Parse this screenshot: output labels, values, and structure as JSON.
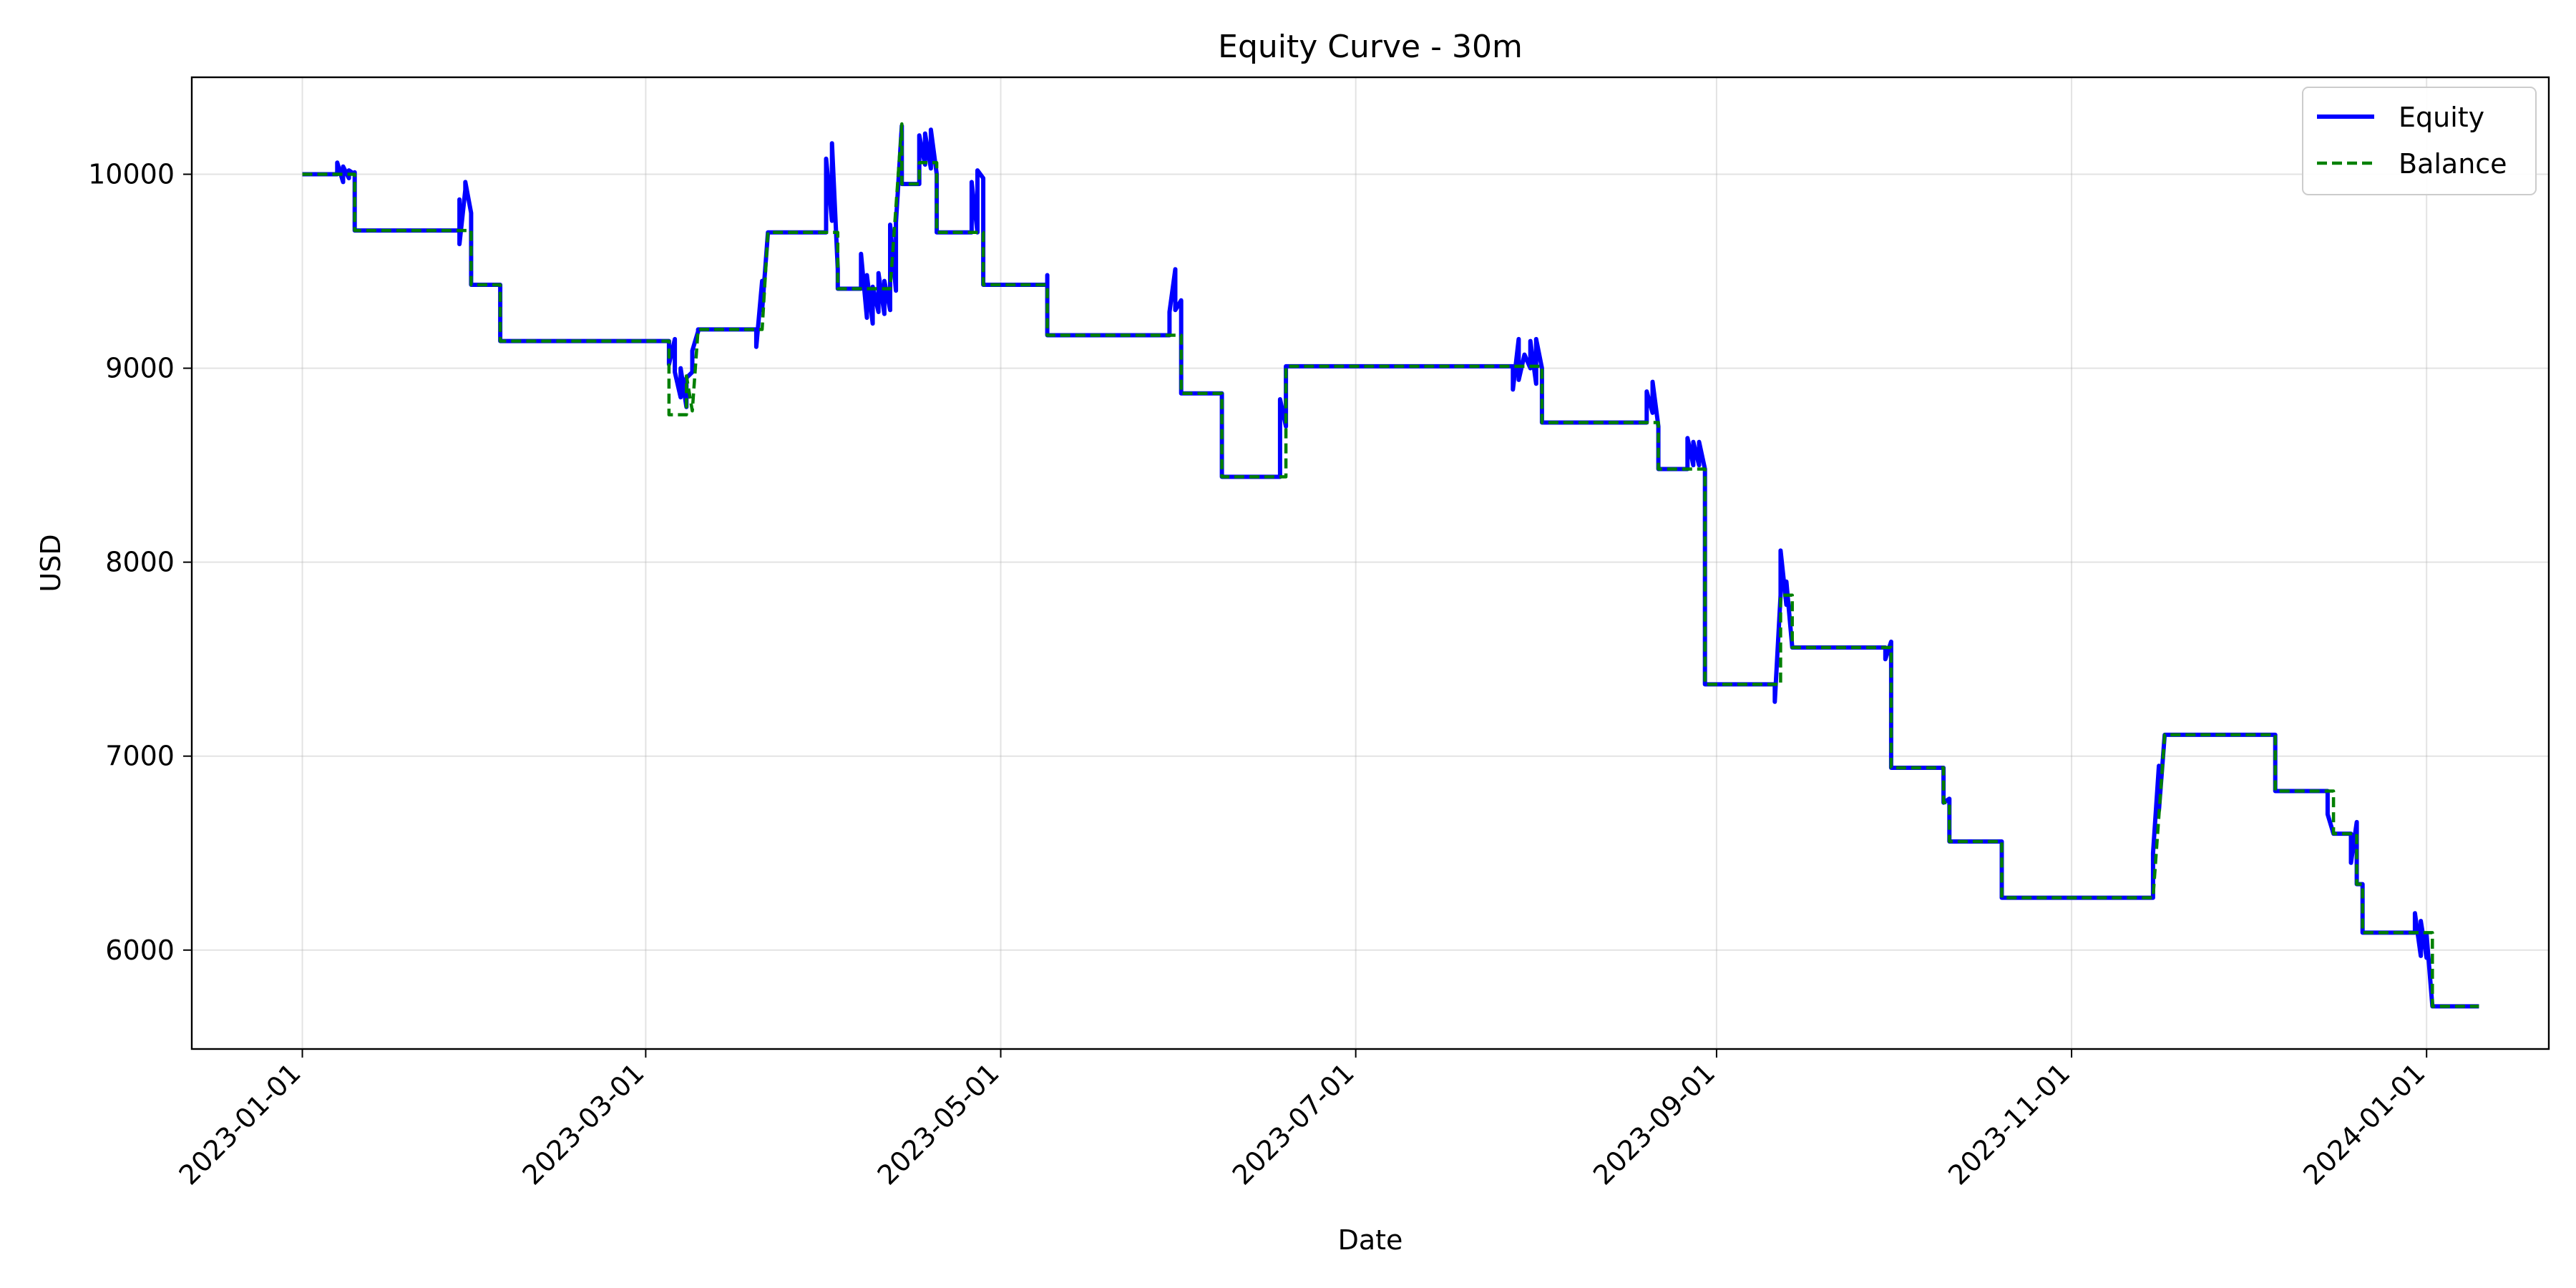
{
  "chart_data": {
    "type": "line",
    "title": "Equity Curve - 30m",
    "xlabel": "Date",
    "ylabel": "USD",
    "xlim": [
      "2022-12-13",
      "2024-01-22"
    ],
    "ylim": [
      5490,
      10500
    ],
    "x_ticks": [
      "2023-01-01",
      "2023-03-01",
      "2023-05-01",
      "2023-07-01",
      "2023-09-01",
      "2023-11-01",
      "2024-01-01"
    ],
    "y_ticks": [
      6000,
      7000,
      8000,
      9000,
      10000
    ],
    "grid": true,
    "legend_position": "top-right",
    "series": [
      {
        "name": "Equity",
        "color": "#0000ff",
        "style": "solid",
        "points": [
          [
            "2023-01-01",
            10000
          ],
          [
            "2023-01-07",
            10000
          ],
          [
            "2023-01-07",
            10060
          ],
          [
            "2023-01-08",
            9960
          ],
          [
            "2023-01-08",
            10040
          ],
          [
            "2023-01-09",
            9980
          ],
          [
            "2023-01-09",
            10020
          ],
          [
            "2023-01-10",
            10000
          ],
          [
            "2023-01-10",
            10010
          ],
          [
            "2023-01-10",
            9710
          ],
          [
            "2023-01-28",
            9710
          ],
          [
            "2023-01-28",
            9870
          ],
          [
            "2023-01-28",
            9640
          ],
          [
            "2023-01-29",
            9920
          ],
          [
            "2023-01-29",
            9960
          ],
          [
            "2023-01-30",
            9800
          ],
          [
            "2023-01-30",
            9720
          ],
          [
            "2023-01-30",
            9430
          ],
          [
            "2023-02-04",
            9430
          ],
          [
            "2023-02-04",
            9140
          ],
          [
            "2023-03-05",
            9140
          ],
          [
            "2023-03-05",
            9020
          ],
          [
            "2023-03-06",
            9150
          ],
          [
            "2023-03-06",
            8980
          ],
          [
            "2023-03-07",
            8850
          ],
          [
            "2023-03-07",
            9000
          ],
          [
            "2023-03-08",
            8800
          ],
          [
            "2023-03-08",
            8950
          ],
          [
            "2023-03-09",
            8980
          ],
          [
            "2023-03-09",
            9090
          ],
          [
            "2023-03-10",
            9190
          ],
          [
            "2023-03-10",
            9200
          ],
          [
            "2023-03-20",
            9200
          ],
          [
            "2023-03-20",
            9110
          ],
          [
            "2023-03-21",
            9450
          ],
          [
            "2023-03-21",
            9300
          ],
          [
            "2023-03-22",
            9700
          ],
          [
            "2023-04-01",
            9700
          ],
          [
            "2023-04-01",
            10080
          ],
          [
            "2023-04-02",
            9760
          ],
          [
            "2023-04-02",
            10160
          ],
          [
            "2023-04-03",
            9510
          ],
          [
            "2023-04-03",
            9410
          ],
          [
            "2023-04-07",
            9410
          ],
          [
            "2023-04-07",
            9590
          ],
          [
            "2023-04-08",
            9260
          ],
          [
            "2023-04-08",
            9480
          ],
          [
            "2023-04-09",
            9230
          ],
          [
            "2023-04-09",
            9420
          ],
          [
            "2023-04-10",
            9290
          ],
          [
            "2023-04-10",
            9490
          ],
          [
            "2023-04-11",
            9280
          ],
          [
            "2023-04-11",
            9450
          ],
          [
            "2023-04-12",
            9300
          ],
          [
            "2023-04-12",
            9740
          ],
          [
            "2023-04-13",
            9400
          ],
          [
            "2023-04-13",
            9750
          ],
          [
            "2023-04-14",
            10250
          ],
          [
            "2023-04-14",
            9950
          ],
          [
            "2023-04-17",
            9950
          ],
          [
            "2023-04-17",
            10200
          ],
          [
            "2023-04-18",
            10050
          ],
          [
            "2023-04-18",
            10210
          ],
          [
            "2023-04-19",
            10030
          ],
          [
            "2023-04-19",
            10230
          ],
          [
            "2023-04-20",
            10000
          ],
          [
            "2023-04-20",
            9700
          ],
          [
            "2023-04-26",
            9700
          ],
          [
            "2023-04-26",
            9960
          ],
          [
            "2023-04-27",
            9700
          ],
          [
            "2023-04-27",
            10020
          ],
          [
            "2023-04-28",
            9980
          ],
          [
            "2023-04-28",
            9430
          ],
          [
            "2023-05-09",
            9430
          ],
          [
            "2023-05-09",
            9480
          ],
          [
            "2023-05-09",
            9170
          ],
          [
            "2023-05-30",
            9170
          ],
          [
            "2023-05-30",
            9290
          ],
          [
            "2023-05-31",
            9510
          ],
          [
            "2023-05-31",
            9300
          ],
          [
            "2023-06-01",
            9350
          ],
          [
            "2023-06-01",
            8870
          ],
          [
            "2023-06-08",
            8870
          ],
          [
            "2023-06-08",
            8440
          ],
          [
            "2023-06-18",
            8440
          ],
          [
            "2023-06-18",
            8840
          ],
          [
            "2023-06-19",
            8700
          ],
          [
            "2023-06-19",
            9010
          ],
          [
            "2023-07-28",
            9010
          ],
          [
            "2023-07-28",
            8890
          ],
          [
            "2023-07-29",
            9150
          ],
          [
            "2023-07-29",
            8940
          ],
          [
            "2023-07-30",
            9070
          ],
          [
            "2023-07-31",
            9000
          ],
          [
            "2023-07-31",
            9140
          ],
          [
            "2023-08-01",
            8920
          ],
          [
            "2023-08-01",
            9150
          ],
          [
            "2023-08-02",
            9000
          ],
          [
            "2023-08-02",
            8720
          ],
          [
            "2023-08-20",
            8720
          ],
          [
            "2023-08-20",
            8880
          ],
          [
            "2023-08-21",
            8770
          ],
          [
            "2023-08-21",
            8930
          ],
          [
            "2023-08-22",
            8700
          ],
          [
            "2023-08-22",
            8480
          ],
          [
            "2023-08-27",
            8480
          ],
          [
            "2023-08-27",
            8640
          ],
          [
            "2023-08-28",
            8500
          ],
          [
            "2023-08-28",
            8620
          ],
          [
            "2023-08-29",
            8500
          ],
          [
            "2023-08-29",
            8620
          ],
          [
            "2023-08-30",
            8480
          ],
          [
            "2023-08-30",
            7370
          ],
          [
            "2023-09-11",
            7370
          ],
          [
            "2023-09-11",
            7280
          ],
          [
            "2023-09-12",
            7830
          ],
          [
            "2023-09-12",
            8060
          ],
          [
            "2023-09-13",
            7780
          ],
          [
            "2023-09-13",
            7900
          ],
          [
            "2023-09-14",
            7560
          ],
          [
            "2023-09-30",
            7560
          ],
          [
            "2023-09-30",
            7500
          ],
          [
            "2023-10-01",
            7590
          ],
          [
            "2023-10-01",
            6940
          ],
          [
            "2023-10-10",
            6940
          ],
          [
            "2023-10-10",
            6760
          ],
          [
            "2023-10-11",
            6780
          ],
          [
            "2023-10-11",
            6560
          ],
          [
            "2023-10-20",
            6560
          ],
          [
            "2023-10-20",
            6520
          ],
          [
            "2023-10-20",
            6270
          ],
          [
            "2023-11-15",
            6270
          ],
          [
            "2023-11-15",
            6500
          ],
          [
            "2023-11-16",
            6950
          ],
          [
            "2023-11-16",
            6720
          ],
          [
            "2023-11-17",
            7110
          ],
          [
            "2023-12-06",
            7110
          ],
          [
            "2023-12-06",
            6820
          ],
          [
            "2023-12-15",
            6820
          ],
          [
            "2023-12-15",
            6700
          ],
          [
            "2023-12-16",
            6600
          ],
          [
            "2023-12-19",
            6600
          ],
          [
            "2023-12-19",
            6450
          ],
          [
            "2023-12-20",
            6660
          ],
          [
            "2023-12-20",
            6340
          ],
          [
            "2023-12-21",
            6340
          ],
          [
            "2023-12-21",
            6090
          ],
          [
            "2023-12-30",
            6090
          ],
          [
            "2023-12-30",
            6190
          ],
          [
            "2023-12-31",
            5970
          ],
          [
            "2023-12-31",
            6150
          ],
          [
            "2024-01-01",
            5960
          ],
          [
            "2024-01-01",
            6080
          ],
          [
            "2024-01-02",
            5710
          ],
          [
            "2024-01-10",
            5710
          ]
        ]
      },
      {
        "name": "Balance",
        "color": "#008000",
        "style": "dashed",
        "points": [
          [
            "2023-01-01",
            10000
          ],
          [
            "2023-01-10",
            10000
          ],
          [
            "2023-01-10",
            9710
          ],
          [
            "2023-01-30",
            9710
          ],
          [
            "2023-01-30",
            9430
          ],
          [
            "2023-02-04",
            9430
          ],
          [
            "2023-02-04",
            9140
          ],
          [
            "2023-03-05",
            9140
          ],
          [
            "2023-03-05",
            8760
          ],
          [
            "2023-03-08",
            8760
          ],
          [
            "2023-03-08",
            8960
          ],
          [
            "2023-03-09",
            8780
          ],
          [
            "2023-03-10",
            9200
          ],
          [
            "2023-03-21",
            9200
          ],
          [
            "2023-03-22",
            9700
          ],
          [
            "2023-04-03",
            9700
          ],
          [
            "2023-04-03",
            9410
          ],
          [
            "2023-04-12",
            9410
          ],
          [
            "2023-04-14",
            10260
          ],
          [
            "2023-04-14",
            9950
          ],
          [
            "2023-04-17",
            9950
          ],
          [
            "2023-04-17",
            10060
          ],
          [
            "2023-04-20",
            10060
          ],
          [
            "2023-04-20",
            9700
          ],
          [
            "2023-04-28",
            9700
          ],
          [
            "2023-04-28",
            9430
          ],
          [
            "2023-05-09",
            9430
          ],
          [
            "2023-05-09",
            9170
          ],
          [
            "2023-06-01",
            9170
          ],
          [
            "2023-06-01",
            8870
          ],
          [
            "2023-06-08",
            8870
          ],
          [
            "2023-06-08",
            8440
          ],
          [
            "2023-06-19",
            8440
          ],
          [
            "2023-06-19",
            9010
          ],
          [
            "2023-08-02",
            9010
          ],
          [
            "2023-08-02",
            8720
          ],
          [
            "2023-08-22",
            8720
          ],
          [
            "2023-08-22",
            8480
          ],
          [
            "2023-08-30",
            8480
          ],
          [
            "2023-08-30",
            7370
          ],
          [
            "2023-09-12",
            7370
          ],
          [
            "2023-09-12",
            7830
          ],
          [
            "2023-09-14",
            7830
          ],
          [
            "2023-09-14",
            7560
          ],
          [
            "2023-10-01",
            7560
          ],
          [
            "2023-10-01",
            6940
          ],
          [
            "2023-10-10",
            6940
          ],
          [
            "2023-10-10",
            6760
          ],
          [
            "2023-10-11",
            6760
          ],
          [
            "2023-10-11",
            6560
          ],
          [
            "2023-10-20",
            6560
          ],
          [
            "2023-10-20",
            6270
          ],
          [
            "2023-11-15",
            6270
          ],
          [
            "2023-11-17",
            7110
          ],
          [
            "2023-12-06",
            7110
          ],
          [
            "2023-12-06",
            6820
          ],
          [
            "2023-12-16",
            6820
          ],
          [
            "2023-12-16",
            6600
          ],
          [
            "2023-12-20",
            6600
          ],
          [
            "2023-12-20",
            6340
          ],
          [
            "2023-12-21",
            6340
          ],
          [
            "2023-12-21",
            6090
          ],
          [
            "2024-01-02",
            6090
          ],
          [
            "2024-01-02",
            5710
          ],
          [
            "2024-01-10",
            5710
          ]
        ]
      }
    ]
  }
}
